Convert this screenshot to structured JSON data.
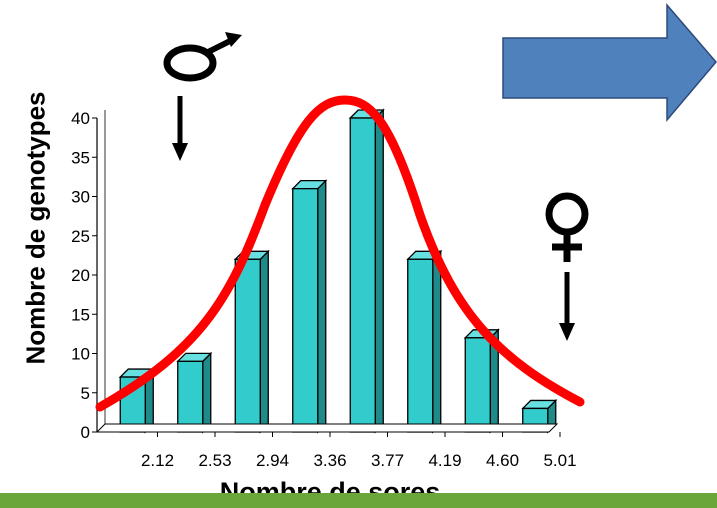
{
  "chart_data": {
    "type": "bar",
    "xlabel": "Nombre de sores",
    "ylabel": "Nombre de genotypes",
    "x_tick_labels": [
      "2.12",
      "2.53",
      "2.94",
      "3.36",
      "3.77",
      "4.19",
      "4.60",
      "5.01"
    ],
    "values": [
      7,
      9,
      22,
      31,
      40,
      22,
      12,
      3
    ],
    "ylim": [
      0,
      40
    ],
    "y_ticks": [
      0,
      5,
      10,
      15,
      20,
      25,
      30,
      35,
      40
    ],
    "grid": false,
    "bar_color": "#33cccc",
    "curve_color": "#ff0000",
    "annotations": {
      "male_symbol": "♂",
      "female_symbol": "♀"
    }
  },
  "colors": {
    "arrow_fill": "#4f81bd",
    "bottom_band": "#6aa63a"
  },
  "icons": [
    "male-symbol-icon",
    "female-symbol-icon",
    "down-arrow-icon",
    "right-block-arrow-icon"
  ]
}
